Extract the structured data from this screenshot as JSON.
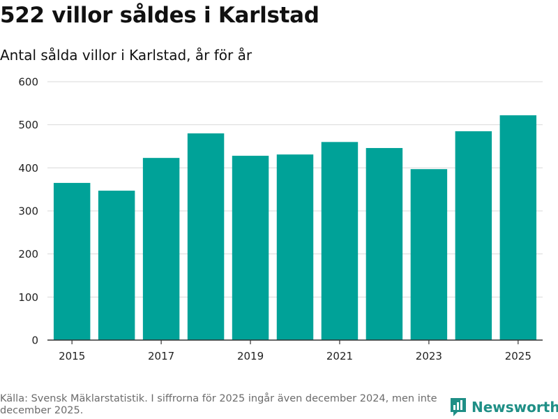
{
  "header": {
    "title": "522 villor såldes i Karlstad",
    "subtitle": "Antal sålda villor i Karlstad, år för år"
  },
  "chart_data": {
    "type": "bar",
    "title": "522 villor såldes i Karlstad",
    "subtitle": "Antal sålda villor i Karlstad, år för år",
    "categories": [
      "2015",
      "2016",
      "2017",
      "2018",
      "2019",
      "2020",
      "2021",
      "2022",
      "2023",
      "2024",
      "2025"
    ],
    "values": [
      365,
      347,
      423,
      480,
      428,
      431,
      460,
      446,
      397,
      485,
      522
    ],
    "x_tick_labels": [
      "2015",
      "2017",
      "2019",
      "2021",
      "2023",
      "2025"
    ],
    "y_ticks": [
      0,
      100,
      200,
      300,
      400,
      500,
      600
    ],
    "ylim": [
      0,
      600
    ],
    "xlabel": "",
    "ylabel": "",
    "grid": true,
    "bar_color": "#00a298"
  },
  "footer": {
    "source": "Källa: Svensk Mäklarstatistik. I siffrorna för 2025 ingår även december 2024, men inte december 2025.",
    "brand": "Newsworthy",
    "brand_icon": "bar-chart-logo-icon",
    "brand_color": "#1f8f86"
  }
}
